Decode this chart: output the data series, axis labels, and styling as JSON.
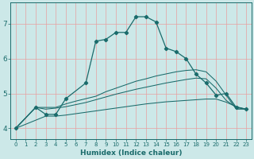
{
  "xlabel": "Humidex (Indice chaleur)",
  "bg_color": "#cce8e8",
  "grid_color": "#e8a0a0",
  "line_color": "#1a6b6b",
  "xlim": [
    -0.5,
    23.5
  ],
  "ylim": [
    3.7,
    7.6
  ],
  "xticks": [
    0,
    1,
    2,
    3,
    4,
    5,
    6,
    7,
    8,
    9,
    10,
    11,
    12,
    13,
    14,
    15,
    16,
    17,
    18,
    19,
    20,
    21,
    22,
    23
  ],
  "yticks": [
    4,
    5,
    6,
    7
  ],
  "series_main_x": [
    0,
    2,
    3,
    4,
    5,
    7,
    8,
    9,
    10,
    11,
    12,
    13,
    14,
    15,
    16,
    17,
    18,
    19,
    20,
    21,
    22,
    23
  ],
  "series_main_y": [
    4.0,
    4.6,
    4.4,
    4.4,
    4.85,
    5.3,
    6.5,
    6.55,
    6.75,
    6.75,
    7.2,
    7.2,
    7.05,
    6.3,
    6.2,
    6.0,
    5.55,
    5.3,
    4.95,
    5.0,
    4.6,
    4.55
  ],
  "series_upper_x": [
    0,
    2,
    3,
    4,
    5,
    6,
    7,
    8,
    9,
    10,
    11,
    12,
    13,
    14,
    15,
    16,
    17,
    18,
    19,
    20,
    21,
    22,
    23
  ],
  "series_upper_y": [
    4.0,
    4.6,
    4.6,
    4.6,
    4.7,
    4.78,
    4.85,
    4.92,
    5.05,
    5.15,
    5.25,
    5.35,
    5.42,
    5.5,
    5.56,
    5.62,
    5.66,
    5.68,
    5.62,
    5.35,
    4.95,
    4.55,
    4.55
  ],
  "series_mid_x": [
    0,
    2,
    3,
    4,
    5,
    6,
    7,
    8,
    9,
    10,
    11,
    12,
    13,
    14,
    15,
    16,
    17,
    18,
    19,
    20,
    21,
    22,
    23
  ],
  "series_mid_y": [
    4.0,
    4.6,
    4.55,
    4.58,
    4.62,
    4.68,
    4.74,
    4.82,
    4.9,
    4.98,
    5.05,
    5.12,
    5.18,
    5.24,
    5.3,
    5.35,
    5.4,
    5.44,
    5.42,
    5.15,
    4.8,
    4.6,
    4.55
  ],
  "series_lower_x": [
    0,
    3,
    4,
    5,
    6,
    7,
    8,
    9,
    10,
    11,
    12,
    13,
    14,
    15,
    16,
    17,
    18,
    19,
    20,
    21,
    22,
    23
  ],
  "series_lower_y": [
    4.0,
    4.35,
    4.35,
    4.38,
    4.42,
    4.46,
    4.5,
    4.54,
    4.58,
    4.62,
    4.66,
    4.7,
    4.73,
    4.76,
    4.78,
    4.8,
    4.82,
    4.84,
    4.84,
    4.75,
    4.62,
    4.55
  ]
}
